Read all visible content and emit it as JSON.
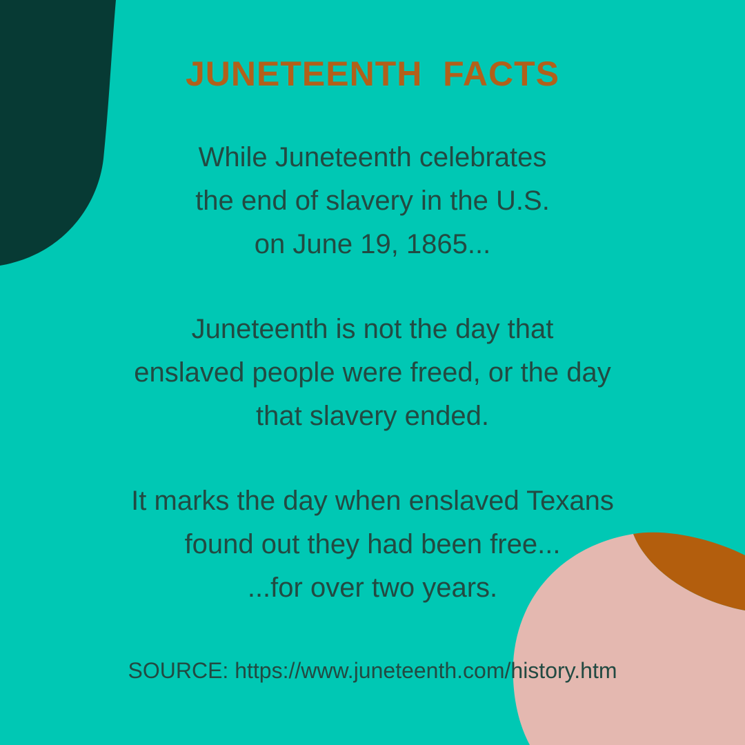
{
  "colors": {
    "background": "#00c8b4",
    "dark_green_shape": "#073a34",
    "pink_shape": "#e4b8b0",
    "rust_shape": "#b35e0d",
    "title_text": "#b2601a",
    "body_text": "#224a42"
  },
  "title": "JUNETEENTH  FACTS",
  "paragraphs": [
    {
      "lines": [
        "While Juneteenth celebrates",
        "the end of slavery in the U.S.",
        "on June 19, 1865..."
      ]
    },
    {
      "lines": [
        "Juneteenth is not the day that",
        "enslaved people were freed, or the day",
        "that slavery ended."
      ]
    },
    {
      "lines": [
        "It marks the day when enslaved Texans",
        "found out they had been free...",
        "...for over two years."
      ]
    }
  ],
  "source": "SOURCE: https://www.juneteenth.com/history.htm"
}
